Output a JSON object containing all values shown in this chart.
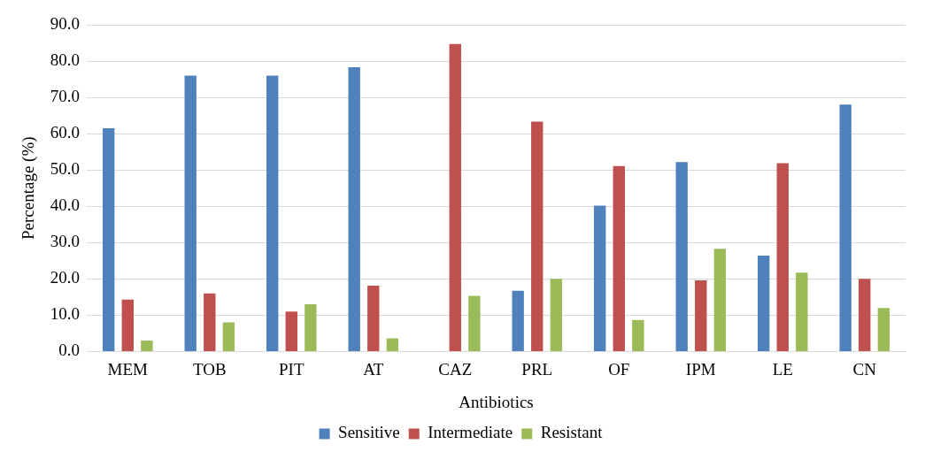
{
  "chart_data": {
    "type": "bar",
    "xlabel": "Antibiotics",
    "ylabel": "Percentage (%)",
    "categories": [
      "MEM",
      "TOB",
      "PIT",
      "AT",
      "CAZ",
      "PRL",
      "OF",
      "IPM",
      "LE",
      "CN"
    ],
    "series": [
      {
        "name": "Sensitive",
        "color": "#4f81bd",
        "values": [
          61.5,
          76.0,
          76.0,
          78.3,
          0,
          16.7,
          40.2,
          52.2,
          26.4,
          68.0
        ]
      },
      {
        "name": "Intermediate",
        "color": "#c0504d",
        "values": [
          14.3,
          16.0,
          11.0,
          18.1,
          84.7,
          63.3,
          51.1,
          19.6,
          51.9,
          20.0
        ]
      },
      {
        "name": "Resistant",
        "color": "#9bbb59",
        "values": [
          3.0,
          8.0,
          13.0,
          3.6,
          15.3,
          20.0,
          8.7,
          28.3,
          21.7,
          12.0
        ]
      }
    ],
    "ylim": [
      0,
      90
    ],
    "yticks": [
      {
        "value": 0,
        "label": "0.0"
      },
      {
        "value": 10,
        "label": "10.0"
      },
      {
        "value": 20,
        "label": "20.0"
      },
      {
        "value": 30,
        "label": "30.0"
      },
      {
        "value": 40,
        "label": "40.0"
      },
      {
        "value": 50,
        "label": "50.0"
      },
      {
        "value": 60,
        "label": "60.0"
      },
      {
        "value": 70,
        "label": "70.0"
      },
      {
        "value": 80,
        "label": "80.0"
      },
      {
        "value": 90,
        "label": "90.0"
      }
    ],
    "grid": "y",
    "legend": "bottom"
  }
}
